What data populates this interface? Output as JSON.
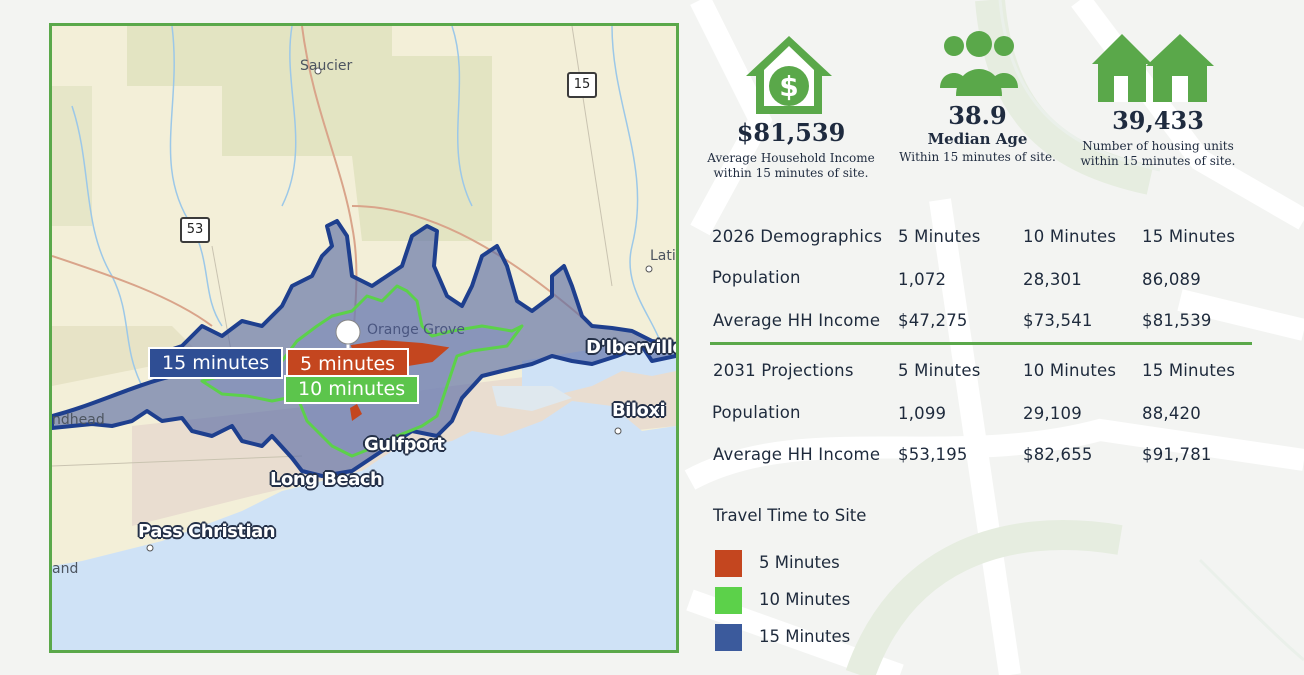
{
  "map": {
    "places": {
      "saucier": "Saucier",
      "latimer": "Lati",
      "dIberville": "D'Iberville",
      "biloxi": "Biloxi",
      "orangeGrove": "Orange Grove",
      "gulfport": "Gulfport",
      "longBeach": "Long Beach",
      "passChristian": "Pass Christian",
      "diamondhead": "ndhead",
      "bayStLouis": "and"
    },
    "highways": {
      "route15": "15",
      "route53": "53"
    },
    "site_labels": {
      "min15": "15 minutes",
      "min5": "5 minutes",
      "min10": "10 minutes"
    }
  },
  "stats": {
    "income": {
      "icon": "house-dollar-icon",
      "value": "$81,539",
      "label1": "Average Household Income",
      "label2": "within 15 minutes of site."
    },
    "age": {
      "icon": "people-group-icon",
      "value": "38.9",
      "label": "Median Age",
      "sub": "Within 15 minutes of site."
    },
    "housing": {
      "icon": "two-houses-icon",
      "value": "39,433",
      "label1": "Number of housing units",
      "label2": "within 15 minutes of site."
    }
  },
  "demographics_2026": {
    "title": "2026 Demographics",
    "columns": [
      "5 Minutes",
      "10 Minutes",
      "15 Minutes"
    ],
    "rows": [
      {
        "label": "Population",
        "values": [
          "1,072",
          "28,301",
          "86,089"
        ]
      },
      {
        "label": "Average HH Income",
        "values": [
          "$47,275",
          "$73,541",
          "$81,539"
        ]
      }
    ]
  },
  "projections_2031": {
    "title": "2031 Projections",
    "columns": [
      "5 Minutes",
      "10 Minutes",
      "15 Minutes"
    ],
    "rows": [
      {
        "label": "Population",
        "values": [
          "1,099",
          "29,109",
          "88,420"
        ]
      },
      {
        "label": "Average HH Income",
        "values": [
          "$53,195",
          "$82,655",
          "$91,781"
        ]
      }
    ]
  },
  "legend": {
    "title": "Travel Time to Site",
    "items": [
      {
        "label": "5 Minutes",
        "color": "#c4461f"
      },
      {
        "label": "10 Minutes",
        "color": "#5cd14a"
      },
      {
        "label": "15 Minutes",
        "color": "#3b5a9c"
      }
    ]
  }
}
